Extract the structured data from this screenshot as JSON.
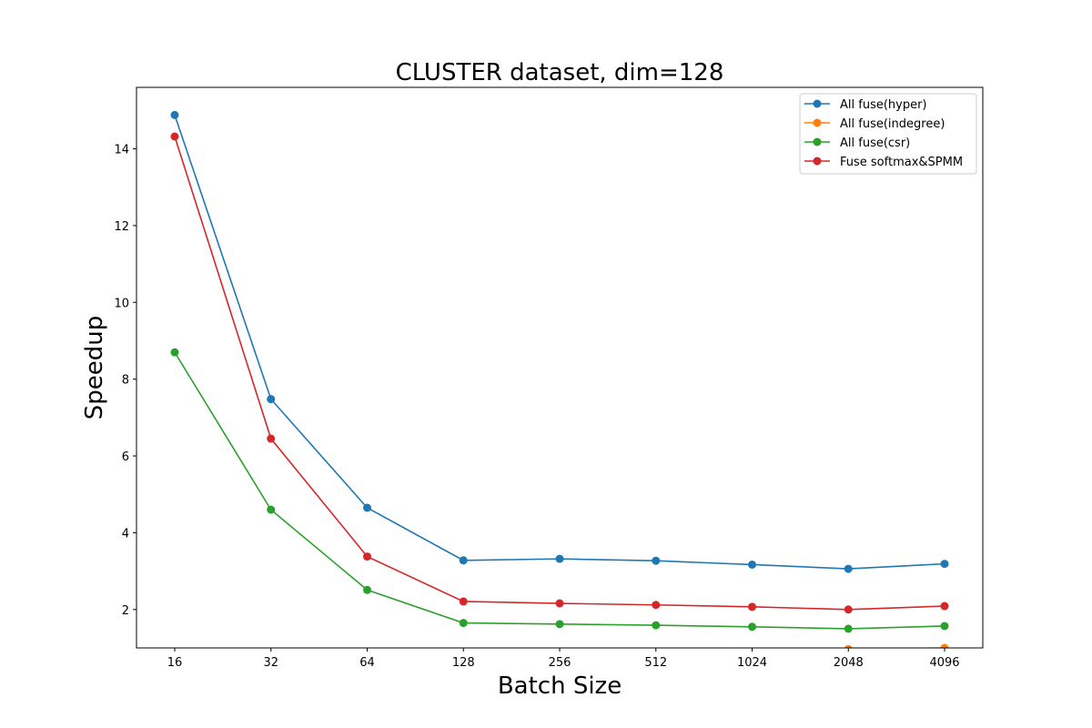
{
  "chart_data": {
    "type": "line",
    "title": "CLUSTER dataset, dim=128",
    "xlabel": "Batch Size",
    "ylabel": "Speedup",
    "categories": [
      "16",
      "32",
      "64",
      "128",
      "256",
      "512",
      "1024",
      "2048",
      "4096"
    ],
    "ylim": [
      1.0,
      15.6
    ],
    "yticks": [
      2,
      4,
      6,
      8,
      10,
      12,
      14
    ],
    "grid": false,
    "legend_position": "top-right",
    "series": [
      {
        "name": "All fuse(hyper)",
        "color": "#1f77b4",
        "values": [
          14.88,
          7.48,
          4.65,
          3.28,
          3.32,
          3.27,
          3.17,
          3.06,
          3.19
        ]
      },
      {
        "name": "All fuse(indegree)",
        "color": "#ff7f0e",
        "values": [
          null,
          null,
          null,
          null,
          null,
          null,
          null,
          0.97,
          1.0
        ]
      },
      {
        "name": "All fuse(csr)",
        "color": "#2ca02c",
        "values": [
          8.7,
          4.6,
          2.51,
          1.65,
          1.62,
          1.59,
          1.55,
          1.5,
          1.57
        ]
      },
      {
        "name": "Fuse softmax&SPMM",
        "color": "#d62728",
        "values": [
          14.32,
          6.45,
          3.38,
          2.21,
          2.16,
          2.12,
          2.07,
          2.0,
          2.09
        ]
      }
    ]
  }
}
